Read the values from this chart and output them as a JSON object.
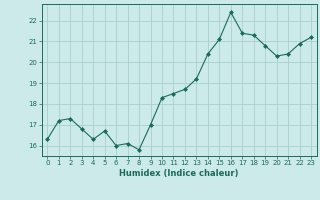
{
  "x": [
    0,
    1,
    2,
    3,
    4,
    5,
    6,
    7,
    8,
    9,
    10,
    11,
    12,
    13,
    14,
    15,
    16,
    17,
    18,
    19,
    20,
    21,
    22,
    23
  ],
  "y": [
    16.3,
    17.2,
    17.3,
    16.8,
    16.3,
    16.7,
    16.0,
    16.1,
    15.8,
    17.0,
    18.3,
    18.5,
    18.7,
    19.2,
    20.4,
    21.1,
    22.4,
    21.4,
    21.3,
    20.8,
    20.3,
    20.4,
    20.9,
    21.2
  ],
  "line_color": "#1a6b5a",
  "marker": "D",
  "marker_size": 2.0,
  "bg_color": "#cceaea",
  "grid_color": "#aacece",
  "xlabel": "Humidex (Indice chaleur)",
  "xlabel_color": "#1a6b5a",
  "tick_color": "#1a6b5a",
  "ylim": [
    15.5,
    22.8
  ],
  "xlim": [
    -0.5,
    23.5
  ],
  "yticks": [
    16,
    17,
    18,
    19,
    20,
    21,
    22
  ],
  "xticks": [
    0,
    1,
    2,
    3,
    4,
    5,
    6,
    7,
    8,
    9,
    10,
    11,
    12,
    13,
    14,
    15,
    16,
    17,
    18,
    19,
    20,
    21,
    22,
    23
  ],
  "tick_fontsize": 5.0,
  "xlabel_fontsize": 6.0,
  "linewidth": 0.8
}
